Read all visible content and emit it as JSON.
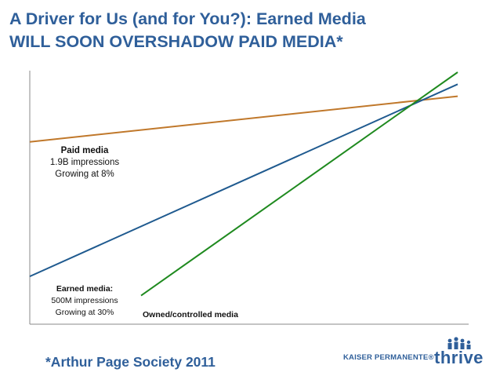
{
  "slide": {
    "title_line1": "A Driver for Us (and for You?): Earned Media",
    "title_line2": "WILL SOON OVERSHADOW PAID MEDIA*",
    "footnote": "*Arthur Page Society 2011",
    "logo_text": "KAISER PERMANENTE®",
    "logo_brand": "thrive"
  },
  "labels": {
    "paid": {
      "head": "Paid media",
      "line1": "1.9B impressions",
      "line2": "Growing at 8%"
    },
    "earned": {
      "head": "Earned media:",
      "line1": "500M impressions",
      "line2": "Growing at 30%"
    },
    "owned": "Owned/controlled media"
  },
  "colors": {
    "title": "#2f5f9a",
    "paid": "#c0782b",
    "earned": "#1f5a8f",
    "owned": "#1f8a1f",
    "axis": "#888888"
  },
  "chart_data": {
    "type": "line",
    "title": "",
    "xlabel": "",
    "ylabel": "",
    "grid": false,
    "xlim": [
      0,
      100
    ],
    "ylim": [
      0,
      100
    ],
    "series": [
      {
        "name": "Paid media",
        "color": "#c0782b",
        "x": [
          0,
          100
        ],
        "y": [
          71,
          90
        ]
      },
      {
        "name": "Earned media",
        "color": "#1f5a8f",
        "x": [
          0,
          100
        ],
        "y": [
          15,
          95
        ]
      },
      {
        "name": "Owned/controlled media",
        "color": "#1f8a1f",
        "x": [
          26,
          100
        ],
        "y": [
          7,
          100
        ]
      }
    ]
  }
}
